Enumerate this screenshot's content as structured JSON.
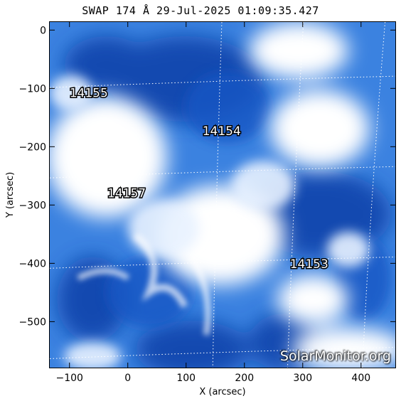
{
  "title": "SWAP 174 Å 29-Jul-2025 01:09:35.427",
  "x_axis": {
    "label": "X (arcsec)",
    "range": [
      -135,
      460
    ],
    "ticks": [
      -100,
      0,
      100,
      200,
      300,
      400
    ]
  },
  "y_axis": {
    "label": "Y (arcsec)",
    "range": [
      -580,
      15
    ],
    "ticks": [
      0,
      -100,
      -200,
      -300,
      -400,
      -500
    ]
  },
  "grid_longitudes": [
    160,
    300,
    440
  ],
  "grid_latitudes": [
    -90,
    -245,
    -400,
    -555
  ],
  "regions": [
    {
      "label": "14155",
      "x": -100,
      "y": -115
    },
    {
      "label": "14154",
      "x": 128,
      "y": -180
    },
    {
      "label": "14157",
      "x": -35,
      "y": -287
    },
    {
      "label": "14153",
      "x": 278,
      "y": -408
    }
  ],
  "watermark": "SolarMonitor.org",
  "colors": {
    "background_blue": "#2a6fd6",
    "dark_blue": "#0d3fa8",
    "bright": "#ffffff"
  }
}
